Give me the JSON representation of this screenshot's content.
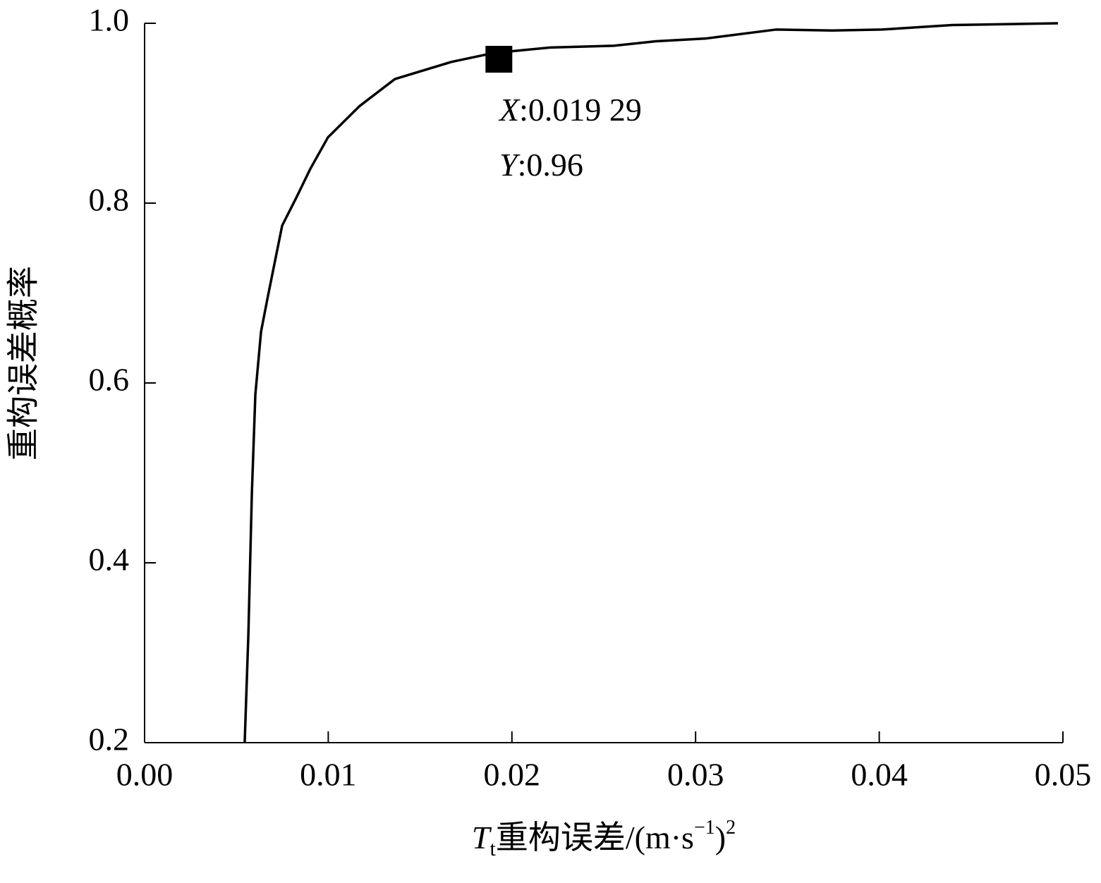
{
  "chart_data": {
    "type": "line",
    "y_label": "重构误差概率",
    "x_label_parts": [
      "T",
      "t",
      "重构误差/(m·s",
      "−1",
      ")",
      "2"
    ],
    "x": [
      0.00545,
      0.00565,
      0.00584,
      0.00603,
      0.00634,
      0.00672,
      0.00749,
      0.00826,
      0.00902,
      0.00998,
      0.01171,
      0.01363,
      0.0167,
      0.01901,
      0.02208,
      0.02554,
      0.02784,
      0.03053,
      0.03437,
      0.03744,
      0.04013,
      0.04397,
      0.04973
    ],
    "series": [
      {
        "color": "#000000",
        "values": [
          0.2,
          0.32,
          0.477,
          0.587,
          0.657,
          0.697,
          0.775,
          0.806,
          0.838,
          0.873,
          0.908,
          0.938,
          0.957,
          0.967,
          0.973,
          0.975,
          0.98,
          0.983,
          0.993,
          0.992,
          0.993,
          0.998,
          1.0
        ]
      }
    ],
    "xlim": [
      0,
      0.05
    ],
    "ylim": [
      0.2,
      1.0
    ],
    "xticks": [
      {
        "value": 0,
        "label": "0.00"
      },
      0.01,
      0.02,
      0.03,
      0.04,
      0.05
    ],
    "yticks": [
      0.2,
      0.4,
      0.6,
      0.8,
      {
        "value": 1.0,
        "label": "1.0"
      }
    ],
    "marker": {
      "x": 0.01929,
      "y": 0.96,
      "x_name": "X",
      "y_name": "Y",
      "x_label": "0.019 29",
      "y_label": "0.96",
      "separator": ":"
    }
  }
}
